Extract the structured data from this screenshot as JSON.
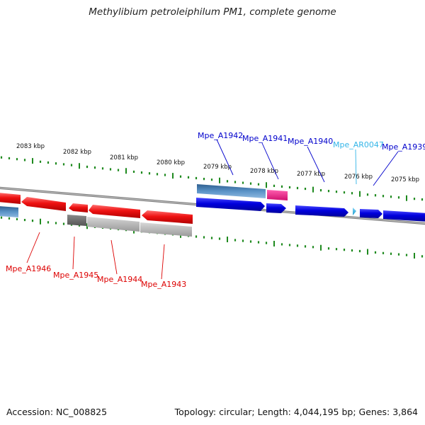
{
  "title": "Methylibium petroleiphilum PM1, complete genome",
  "footer": {
    "accession": "Accession: NC_008825",
    "summary": "Topology: circular; Length: 4,044,195 bp; Genes: 3,864"
  },
  "colors": {
    "tick": "#1f8a1f",
    "backbone": "#7a7a7a",
    "forward_gene": "#0000dd",
    "reverse_gene": "#ee1111",
    "trna": "#33b5e8",
    "rrna_pink": "#ee1f8c",
    "steel_blue": "#4f88bd",
    "grey": "#aaaaaa",
    "dark_grey": "#666666"
  },
  "scale_labels": [
    "2083 kbp",
    "2082 kbp",
    "2081 kbp",
    "2080 kbp",
    "2079 kbp",
    "2078 kbp",
    "2077 kbp",
    "2076 kbp",
    "2075 kbp"
  ],
  "gene_labels": [
    {
      "name": "Mpe_A1942",
      "color": "#0000cc"
    },
    {
      "name": "Mpe_A1941",
      "color": "#0000cc"
    },
    {
      "name": "Mpe_A1940",
      "color": "#0000cc"
    },
    {
      "name": "Mpe_AR0047",
      "color": "#33b5e8"
    },
    {
      "name": "Mpe_A1939",
      "color": "#0000cc"
    },
    {
      "name": "Mpe_A1946",
      "color": "#dd0000"
    },
    {
      "name": "Mpe_A1945",
      "color": "#dd0000"
    },
    {
      "name": "Mpe_A1944",
      "color": "#dd0000"
    },
    {
      "name": "Mpe_A1943",
      "color": "#dd0000"
    }
  ]
}
